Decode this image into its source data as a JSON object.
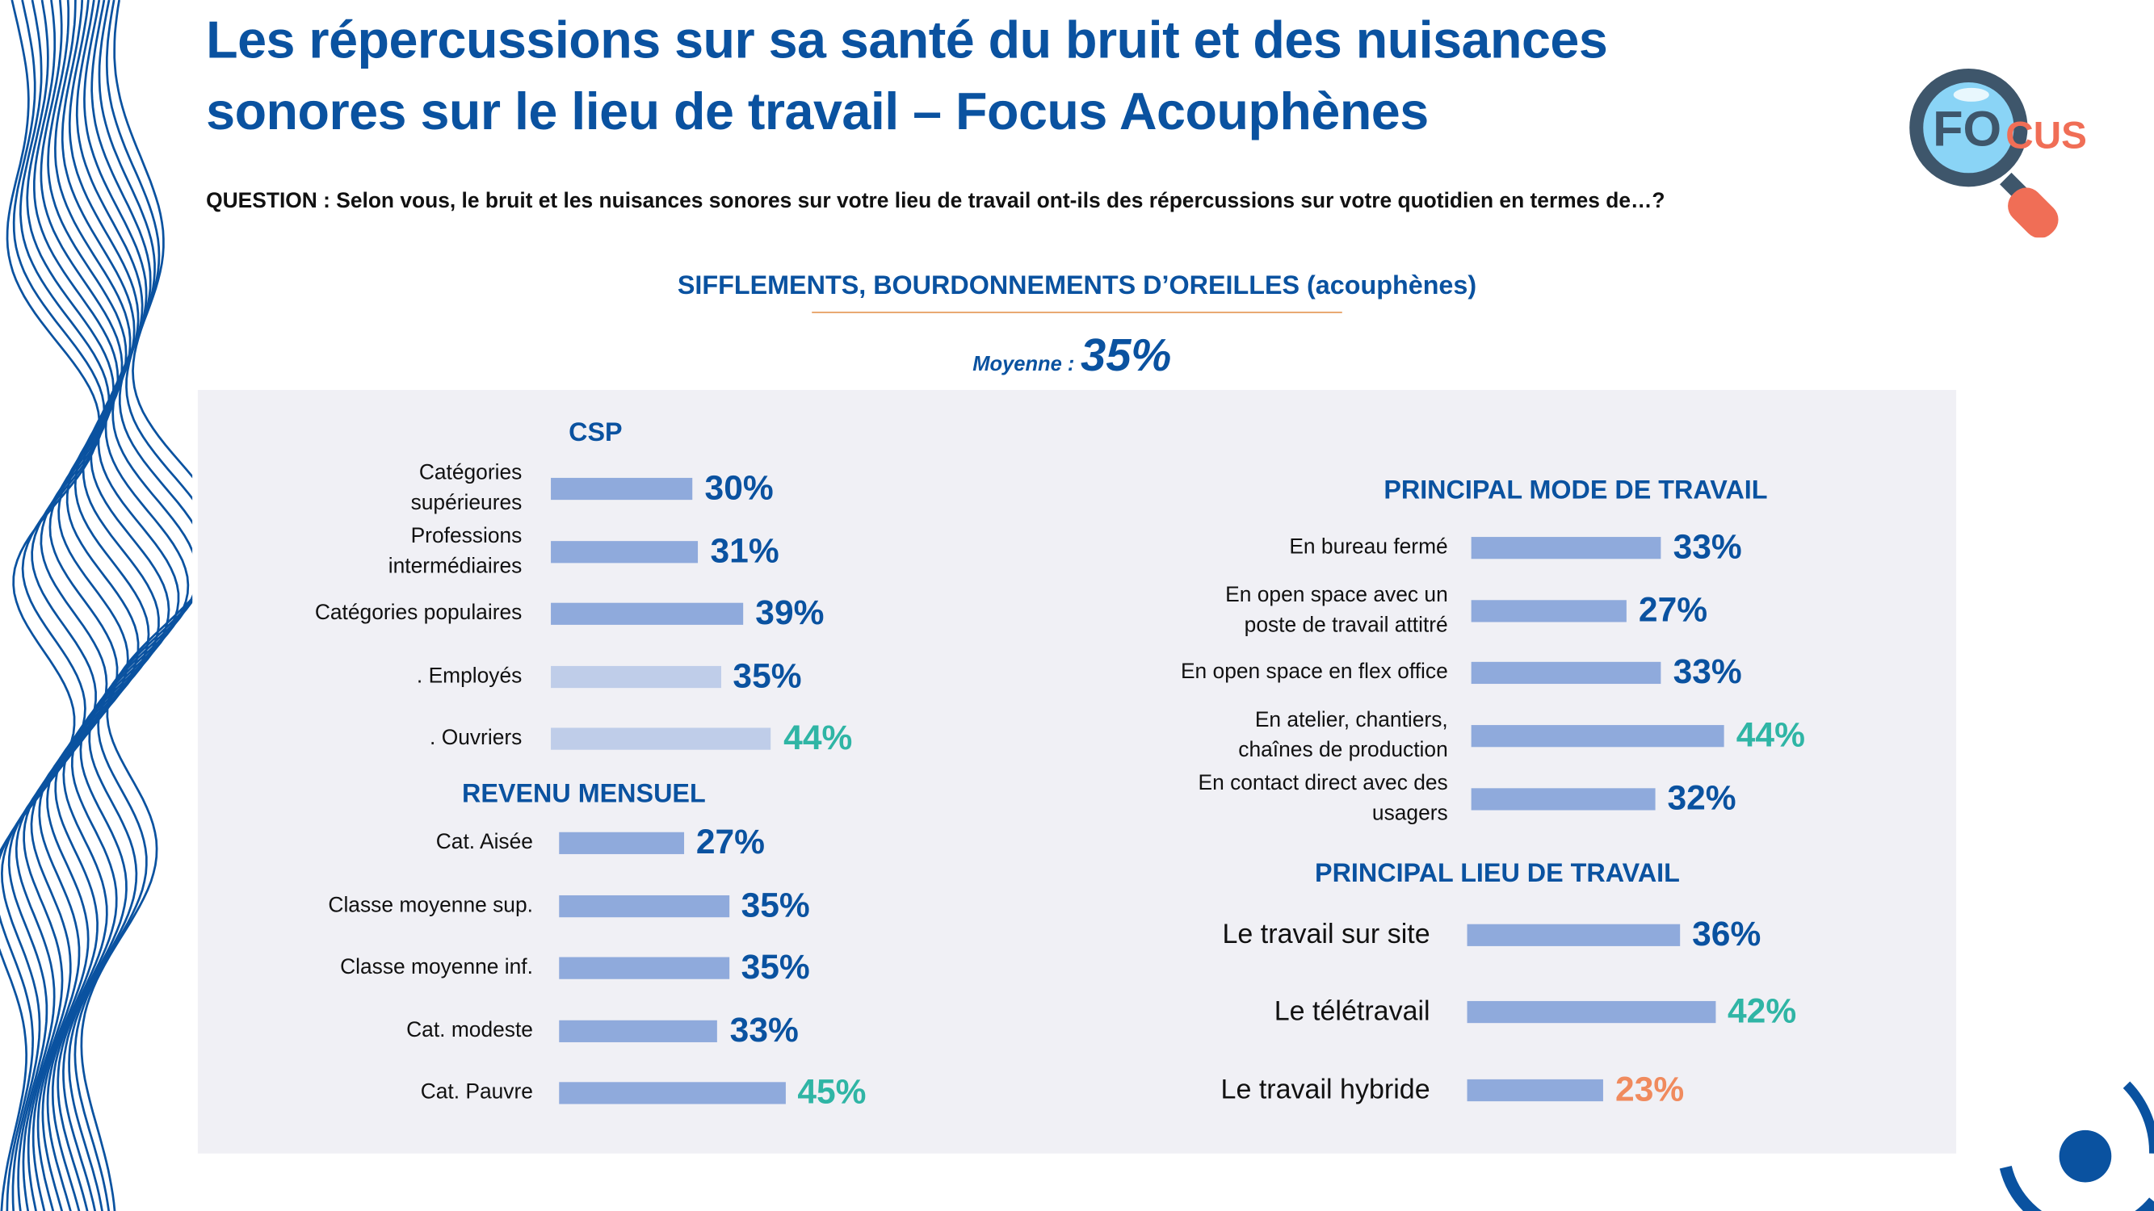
{
  "title_line1": "Les répercussions sur sa santé du bruit et des nuisances",
  "title_line2": "sonores sur le lieu de travail – Focus Acouphènes",
  "question": "QUESTION : Selon vous, le bruit et les nuisances sonores sur votre lieu de travail ont-ils des répercussions sur votre quotidien en termes de…?",
  "logo": {
    "text_a": "FO",
    "text_b": "CUS",
    "icon": "magnifier-icon"
  },
  "colors": {
    "title": "#0a52a0",
    "bar": "#8faadc",
    "bar_light": "#bfcde9",
    "high": "#2fb5a5",
    "low": "#f08a5d",
    "panel": "#f0f0f5"
  },
  "chart_data": {
    "type": "bar",
    "orientation": "horizontal",
    "title": "SIFFLEMENTS, BOURDONNEMENTS D’OREILLES (acouphènes)",
    "average_label": "Moyenne :",
    "average": "35%",
    "groups": [
      {
        "heading": "CSP",
        "items": [
          {
            "label": "Catégories\nsupérieures",
            "value": 30,
            "text": "30%",
            "shade": "bar",
            "tone": "normal"
          },
          {
            "label": "Professions\nintermédiaires",
            "value": 31,
            "text": "31%",
            "shade": "bar",
            "tone": "normal"
          },
          {
            "label": "Catégories populaires",
            "value": 39,
            "text": "39%",
            "shade": "bar",
            "tone": "normal"
          },
          {
            "label": ". Employés",
            "value": 35,
            "text": "35%",
            "shade": "bar_light",
            "tone": "normal"
          },
          {
            "label": ". Ouvriers",
            "value": 44,
            "text": "44%",
            "shade": "bar_light",
            "tone": "high"
          }
        ]
      },
      {
        "heading": "REVENU MENSUEL",
        "items": [
          {
            "label": "Cat. Aisée",
            "value": 27,
            "text": "27%",
            "shade": "bar",
            "tone": "normal"
          },
          {
            "label": "Classe moyenne sup.",
            "value": 35,
            "text": "35%",
            "shade": "bar",
            "tone": "normal"
          },
          {
            "label": "Classe moyenne inf.",
            "value": 35,
            "text": "35%",
            "shade": "bar",
            "tone": "normal"
          },
          {
            "label": "Cat. modeste",
            "value": 33,
            "text": "33%",
            "shade": "bar",
            "tone": "normal"
          },
          {
            "label": "Cat. Pauvre",
            "value": 45,
            "text": "45%",
            "shade": "bar",
            "tone": "high"
          }
        ]
      },
      {
        "heading": "PRINCIPAL MODE DE TRAVAIL",
        "items": [
          {
            "label": "En bureau fermé",
            "value": 33,
            "text": "33%",
            "shade": "bar",
            "tone": "normal"
          },
          {
            "label": "En open space avec un\nposte de travail attitré",
            "value": 27,
            "text": "27%",
            "shade": "bar",
            "tone": "normal"
          },
          {
            "label": "En open space en flex office",
            "value": 33,
            "text": "33%",
            "shade": "bar",
            "tone": "normal"
          },
          {
            "label": "En atelier, chantiers,\nchaînes de production",
            "value": 44,
            "text": "44%",
            "shade": "bar",
            "tone": "high"
          },
          {
            "label": "En contact direct avec des\nusagers",
            "value": 32,
            "text": "32%",
            "shade": "bar",
            "tone": "normal"
          }
        ]
      },
      {
        "heading": "PRINCIPAL LIEU DE TRAVAIL",
        "items": [
          {
            "label": "Le travail sur site",
            "value": 36,
            "text": "36%",
            "shade": "bar",
            "tone": "normal"
          },
          {
            "label": "Le télétravail",
            "value": 42,
            "text": "42%",
            "shade": "bar",
            "tone": "high"
          },
          {
            "label": "Le travail hybride",
            "value": 23,
            "text": "23%",
            "shade": "bar",
            "tone": "low"
          }
        ]
      }
    ]
  }
}
